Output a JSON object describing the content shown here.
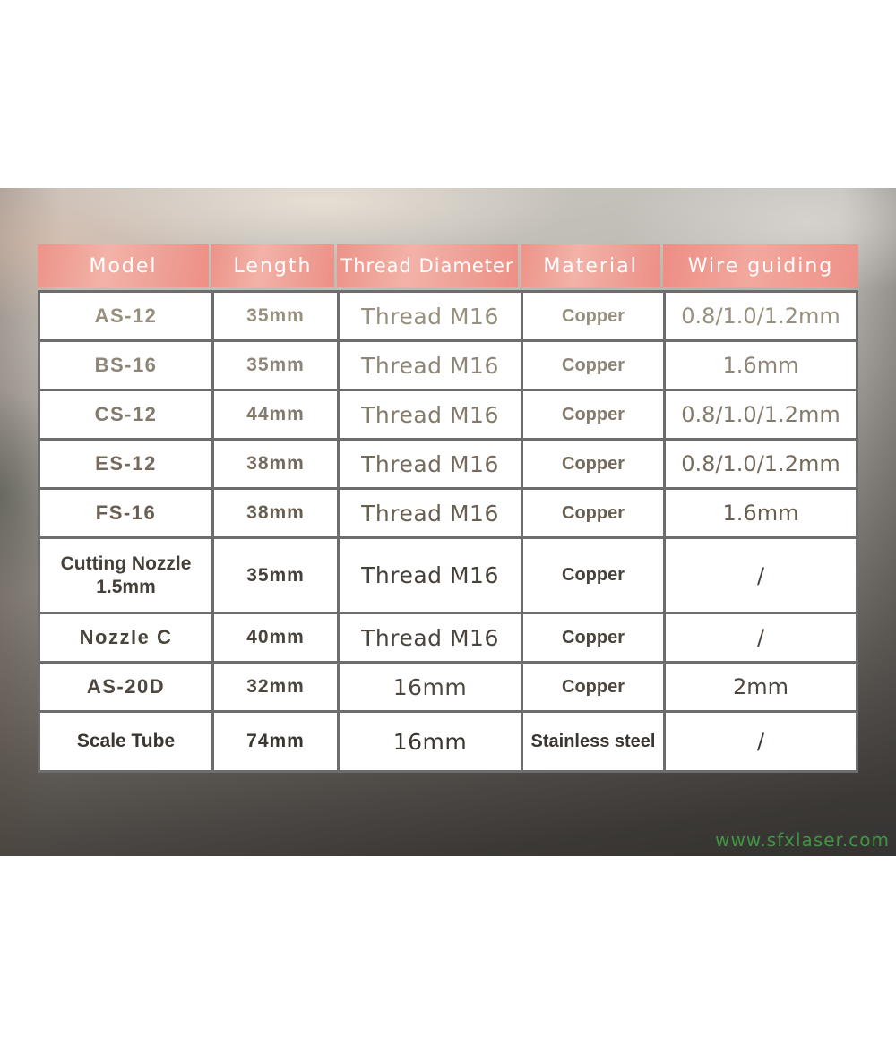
{
  "chart_data": {
    "type": "table",
    "title": "",
    "columns": [
      "Model",
      "Length",
      "Thread Diameter",
      "Material",
      "Wire guiding"
    ],
    "rows": [
      {
        "model": "AS-12",
        "length": "35mm",
        "thread": "Thread M16",
        "material": "Copper",
        "wire": "0.8/1.0/1.2mm"
      },
      {
        "model": "BS-16",
        "length": "35mm",
        "thread": "Thread M16",
        "material": "Copper",
        "wire": "1.6mm"
      },
      {
        "model": "CS-12",
        "length": "44mm",
        "thread": "Thread M16",
        "material": "Copper",
        "wire": "0.8/1.0/1.2mm"
      },
      {
        "model": "ES-12",
        "length": "38mm",
        "thread": "Thread M16",
        "material": "Copper",
        "wire": "0.8/1.0/1.2mm"
      },
      {
        "model": "FS-16",
        "length": "38mm",
        "thread": "Thread M16",
        "material": "Copper",
        "wire": "1.6mm"
      },
      {
        "model": "Cutting Nozzle\n1.5mm",
        "length": "35mm",
        "thread": "Thread M16",
        "material": "Copper",
        "wire": "/"
      },
      {
        "model": "Nozzle C",
        "length": "40mm",
        "thread": "Thread M16",
        "material": "Copper",
        "wire": "/"
      },
      {
        "model": "AS-20D",
        "length": "32mm",
        "thread": "16mm",
        "material": "Copper",
        "wire": "2mm"
      },
      {
        "model": "Scale Tube",
        "length": "74mm",
        "thread": "16mm",
        "material": "Stainless steel",
        "wire": "/"
      }
    ],
    "layout": {
      "header_bg": "#f0a096",
      "header_text_color": "#ffffff",
      "grid": "on"
    }
  },
  "watermark": {
    "text": "www.sfxlaser.com",
    "color": "#3fa044"
  }
}
